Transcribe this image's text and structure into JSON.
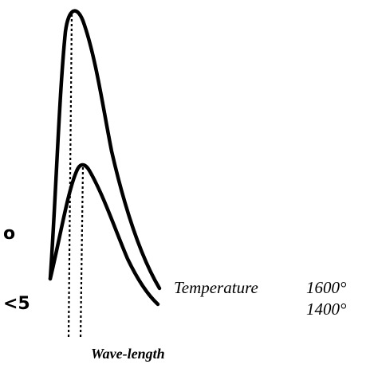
{
  "diagram": {
    "curves": [
      {
        "temperature_label": "1600°"
      },
      {
        "temperature_label": "1400°"
      }
    ],
    "temperature_word": "Temperature",
    "x_axis_label": "Wave-length",
    "left_marks": [
      "o",
      "<5"
    ]
  }
}
